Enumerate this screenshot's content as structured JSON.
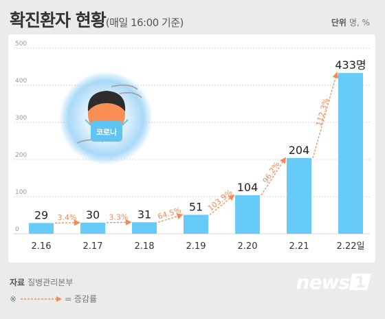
{
  "title": {
    "main": "확진환자 현황",
    "sub": "(매일 16:00 기준)"
  },
  "unit": {
    "label": "단위",
    "value": "명, %"
  },
  "source": {
    "label": "자료",
    "value": "질병관리본부"
  },
  "legend": {
    "mark": "※",
    "text": "= 증감률"
  },
  "illustration": {
    "mask_text": "코로나"
  },
  "logo": {
    "text": "news1"
  },
  "colors": {
    "bar": "#66ccf7",
    "arrow": "#f58a57",
    "grid": "#d4d4d4",
    "label": "#222222"
  },
  "chart_data": {
    "type": "bar",
    "title": "확진환자 현황",
    "categories": [
      "2.16",
      "2.17",
      "2.18",
      "2.19",
      "2.20",
      "2.21",
      "2.22일"
    ],
    "values": [
      29,
      30,
      31,
      51,
      104,
      204,
      433
    ],
    "value_labels": [
      "29",
      "30",
      "31",
      "51",
      "104",
      "204",
      "433명"
    ],
    "growth_rates": [
      "3.4%",
      "3.3%",
      "64.5%",
      "103.9%",
      "96.2%",
      "112.3%"
    ],
    "ylim": [
      0,
      500
    ],
    "yticks": [
      "0",
      "100",
      "200",
      "300",
      "400",
      "500"
    ],
    "grid": true
  }
}
